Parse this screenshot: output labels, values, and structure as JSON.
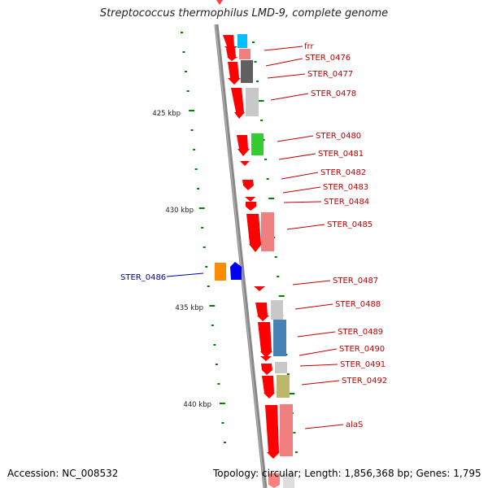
{
  "title": "Streptococcus thermophilus LMD-9, complete genome",
  "accession": "Accession: NC_008532",
  "topology": "Topology: circular; Length: 1,856,368 bp; Genes: 1,795",
  "colors": {
    "backbone": "#888888",
    "forward_gene": "#ff0000",
    "reverse_gene": "#0000ee",
    "tick": "#008000",
    "label_red": "#c00000",
    "label_blue": "#0000b0"
  },
  "scale_labels": [
    "425 kbp",
    "430 kbp",
    "435 kbp",
    "440 kbp"
  ],
  "genes": [
    {
      "label": "frr",
      "color": "#00bfff"
    },
    {
      "label": "STER_0476",
      "color": "#f08080"
    },
    {
      "label": "STER_0477",
      "color": "#606060"
    },
    {
      "label": "STER_0478",
      "color": "#c8c8c8"
    },
    {
      "label": "STER_0480",
      "color": "#33cc33"
    },
    {
      "label": "STER_0481",
      "color": ""
    },
    {
      "label": "STER_0482",
      "color": ""
    },
    {
      "label": "STER_0483",
      "color": ""
    },
    {
      "label": "STER_0484",
      "color": ""
    },
    {
      "label": "STER_0485",
      "color": "#f08080"
    },
    {
      "label": "STER_0486",
      "color": "#ff8c00"
    },
    {
      "label": "STER_0487",
      "color": ""
    },
    {
      "label": "STER_0488",
      "color": "#c8c8c8"
    },
    {
      "label": "STER_0489",
      "color": "#4682b4"
    },
    {
      "label": "STER_0490",
      "color": ""
    },
    {
      "label": "STER_0491",
      "color": "#c8c8c8"
    },
    {
      "label": "STER_0492",
      "color": "#bdb76b"
    },
    {
      "label": "alaS",
      "color": "#f08080"
    }
  ]
}
